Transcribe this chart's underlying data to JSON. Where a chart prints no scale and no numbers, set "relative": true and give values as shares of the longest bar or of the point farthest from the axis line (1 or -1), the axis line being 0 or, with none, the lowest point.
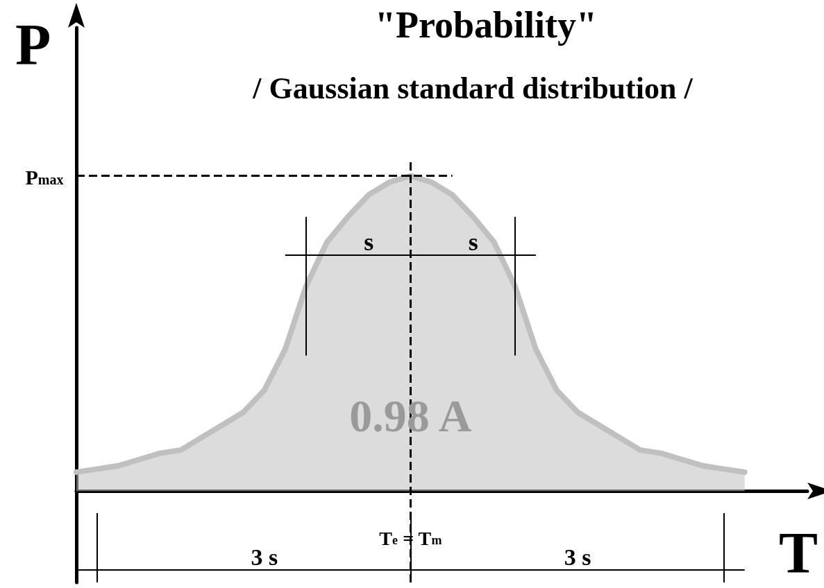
{
  "chart_data": {
    "type": "area",
    "title": "\"Probability\"",
    "subtitle": "/ Gaussian standard distribution /",
    "xlabel": "T",
    "ylabel": "P",
    "relative": true,
    "categories": [
      null,
      null,
      null,
      null,
      null,
      null,
      null,
      null,
      null,
      null,
      null,
      null,
      null,
      null,
      null,
      null,
      null,
      null,
      null,
      null,
      null,
      null,
      null,
      null,
      null,
      null,
      null,
      null,
      null,
      null,
      null,
      null,
      null,
      null,
      null,
      null
    ],
    "values": [
      0.06,
      0.07,
      0.08,
      0.1,
      0.12,
      0.13,
      0.17,
      0.21,
      0.25,
      0.32,
      0.45,
      0.65,
      0.79,
      0.87,
      0.94,
      0.98,
      1,
      0.98,
      0.94,
      0.87,
      0.79,
      0.65,
      0.45,
      0.32,
      0.25,
      0.21,
      0.17,
      0.13,
      0.12,
      0.1,
      0.08,
      0.07,
      0.06,
      null,
      null,
      null
    ],
    "color": "#c0c0c0",
    "ref_lines": [
      {
        "axis": "y",
        "value": 1,
        "label": "P$_{max}$",
        "line_style": "dashed"
      }
    ],
    "annotations": [
      "T$_{e}$ = T$_{m}$",
      "s",
      "s",
      "3 s",
      "3 s",
      "0.98 A"
    ]
  }
}
